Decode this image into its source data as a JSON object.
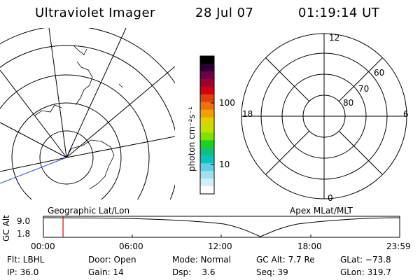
{
  "header": {
    "title": "Ultraviolet Imager",
    "date": "28 Jul 07",
    "time": "01:19:14 UT"
  },
  "colorbar": {
    "unit_label": "photon cm⁻²s⁻¹",
    "tick_labels": [
      "100",
      "10"
    ],
    "colors": [
      "#000000",
      "#2a0030",
      "#6a0048",
      "#a00030",
      "#d00010",
      "#e04010",
      "#f07010",
      "#f0a000",
      "#e0d000",
      "#c0e000",
      "#80e000",
      "#20d020",
      "#10c080",
      "#10c0c0",
      "#60d0e0",
      "#a0e0f0",
      "#d0f0f8",
      "#ffffff"
    ]
  },
  "left_panel": {
    "label": "Geographic Lat/Lon"
  },
  "right_panel": {
    "label": "Apex MLat/MLT",
    "mlt_labels": [
      "12",
      "18",
      "6",
      "0"
    ],
    "mlat_labels": [
      "60",
      "70",
      "80"
    ]
  },
  "timeline": {
    "y_axis_label": "GC Alt",
    "y_ticks": [
      "9.0",
      "1.8"
    ],
    "x_ticks": [
      "00:00",
      "06:00",
      "12:00",
      "18:00",
      "23:59"
    ],
    "current_time_fraction": 0.0551,
    "marker_color": "#e00000"
  },
  "status": {
    "filter": "Flt: LBHL",
    "ip": "IP: 36.0",
    "door": "Door: Open",
    "gain": "Gain: 14",
    "mode": "Mode: Normal",
    "dsp": "Dsp:    3.6",
    "gc_alt": "GC Alt: 7.7 Re",
    "seq": "Seq: 39",
    "glat": "GLat: −73.8",
    "glon": "GLon: 319.7"
  }
}
